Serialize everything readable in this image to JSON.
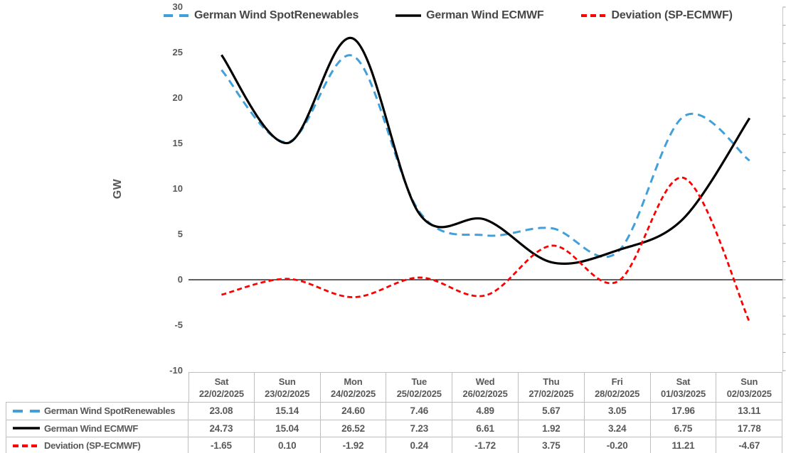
{
  "chart_data": {
    "type": "line",
    "title": "",
    "ylabel": "GW",
    "ylim": [
      -10,
      30
    ],
    "y_ticks": [
      30,
      25,
      20,
      15,
      10,
      5,
      0,
      -5,
      -10
    ],
    "grid": false,
    "legend_position": "top",
    "categories": [
      {
        "day": "Sat",
        "date": "22/02/2025"
      },
      {
        "day": "Sun",
        "date": "23/02/2025"
      },
      {
        "day": "Mon",
        "date": "24/02/2025"
      },
      {
        "day": "Tue",
        "date": "25/02/2025"
      },
      {
        "day": "Wed",
        "date": "26/02/2025"
      },
      {
        "day": "Thu",
        "date": "27/02/2025"
      },
      {
        "day": "Fri",
        "date": "28/02/2025"
      },
      {
        "day": "Sat",
        "date": "01/03/2025"
      },
      {
        "day": "Sun",
        "date": "02/03/2025"
      }
    ],
    "series": [
      {
        "name": "German Wind SpotRenewables",
        "color": "#41A0D9",
        "style": "dashed",
        "values": [
          23.08,
          15.14,
          24.6,
          7.46,
          4.89,
          5.67,
          3.05,
          17.96,
          13.11
        ]
      },
      {
        "name": "German Wind ECMWF",
        "color": "#000000",
        "style": "solid",
        "values": [
          24.73,
          15.04,
          26.52,
          7.23,
          6.61,
          1.92,
          3.24,
          6.75,
          17.78
        ]
      },
      {
        "name": "Deviation (SP-ECMWF)",
        "color": "#FF0000",
        "style": "dashed-short",
        "values": [
          -1.65,
          0.1,
          -1.92,
          0.24,
          -1.72,
          3.75,
          -0.2,
          11.21,
          -4.67
        ]
      }
    ],
    "value_format_decimals": 2
  }
}
